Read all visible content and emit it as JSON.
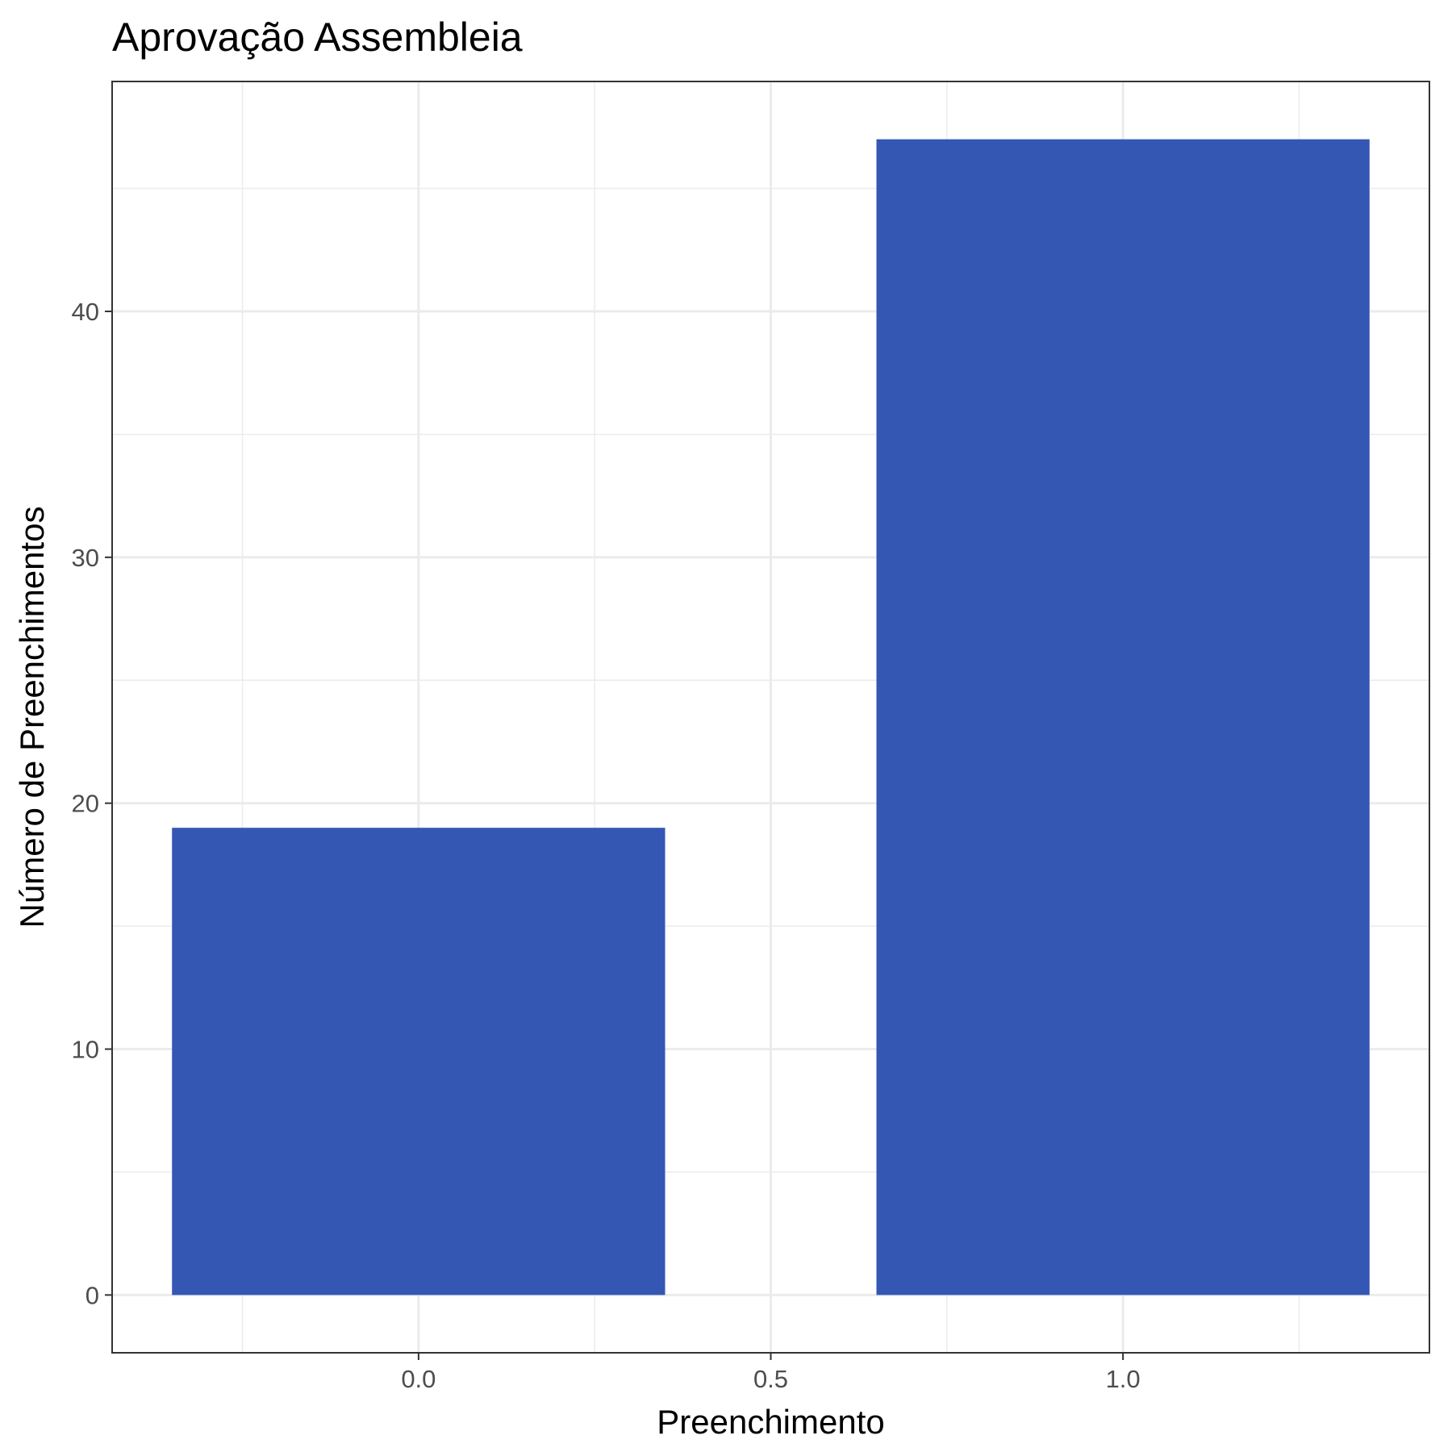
{
  "chart_data": {
    "type": "bar",
    "title": "Aprovação Assembleia",
    "xlabel": "Preenchimento",
    "ylabel": "Número de Preenchimentos",
    "x": [
      0,
      1
    ],
    "values": [
      19,
      47
    ],
    "bar_width": 0.7,
    "xlim": [
      -0.435,
      1.435
    ],
    "ylim": [
      -2.35,
      49.35
    ],
    "x_ticks": [
      0.0,
      0.5,
      1.0
    ],
    "x_tick_labels": [
      "0.0",
      "0.5",
      "1.0"
    ],
    "x_minor_ticks": [
      -0.25,
      0.25,
      0.75,
      1.25
    ],
    "y_ticks": [
      0,
      10,
      20,
      30,
      40
    ],
    "y_tick_labels": [
      "0",
      "10",
      "20",
      "30",
      "40"
    ],
    "y_minor_ticks": [
      5,
      15,
      25,
      35,
      45
    ],
    "grid": true,
    "legend": "none",
    "colors": {
      "bar": "#3457B4",
      "grid_major": "#EBEBEB",
      "grid_minor": "#EBEBEB",
      "panel_border": "#333333",
      "tick_text": "#4D4D4D"
    }
  }
}
